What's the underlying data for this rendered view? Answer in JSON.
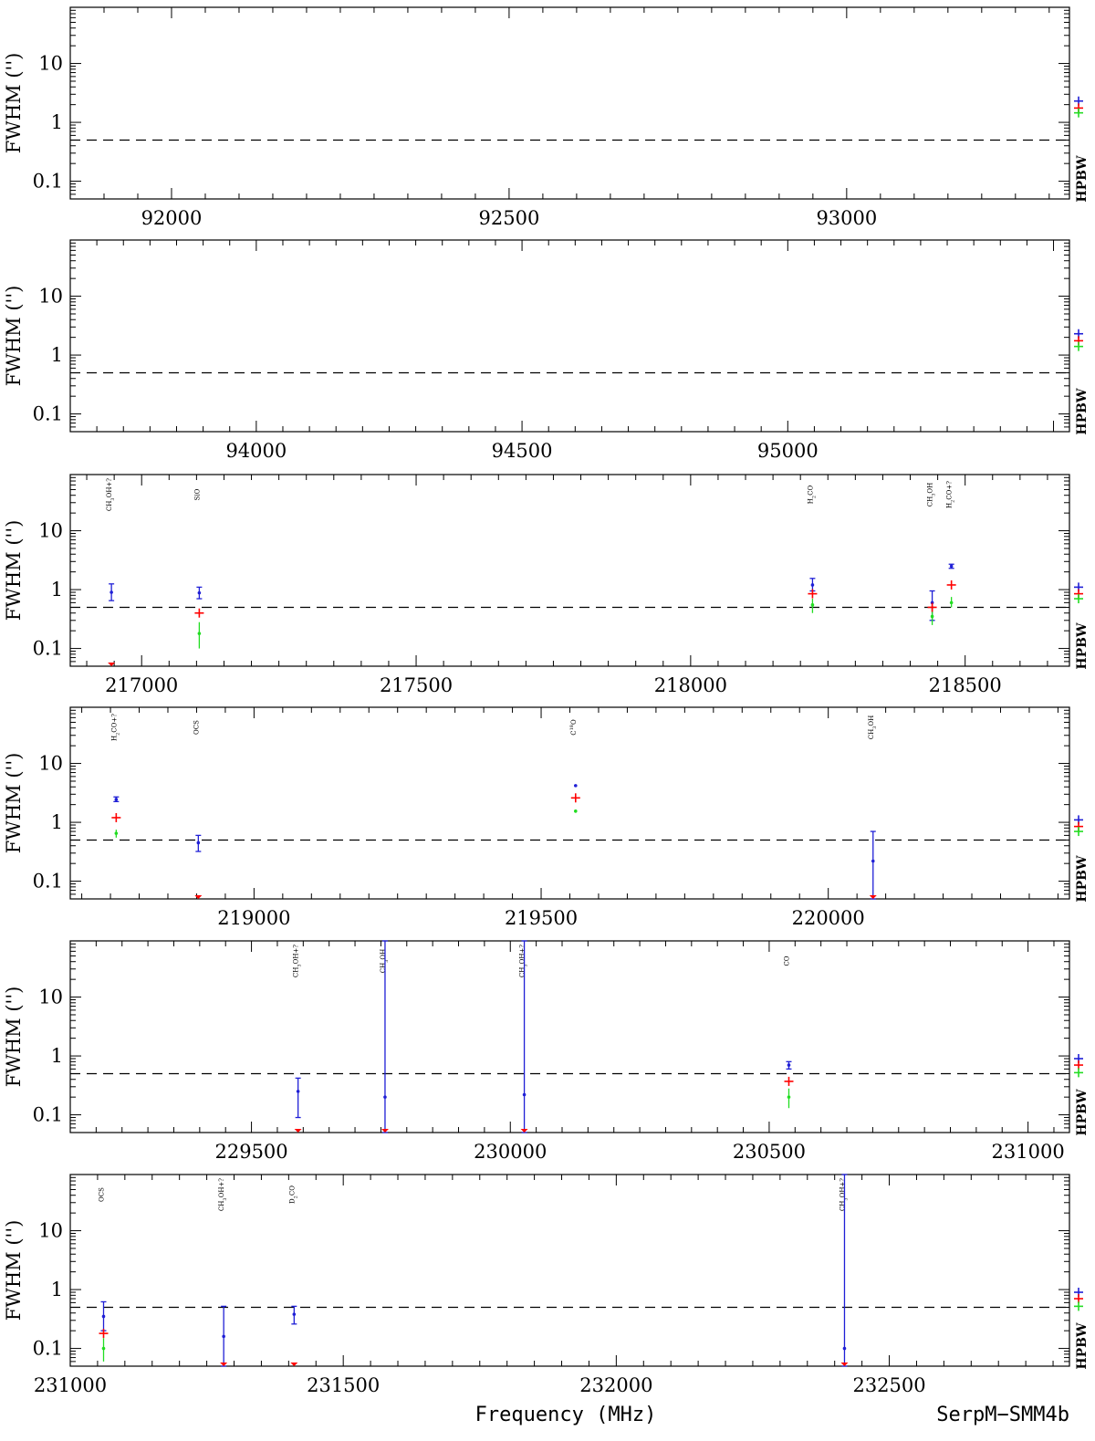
{
  "source_label": "SerpM−SMM4b",
  "xlabel": "Frequency (MHz)",
  "ylabel": "FWHM ('')",
  "hpbw_label": "HPBW",
  "colors": {
    "blue": "#1f1fd6",
    "red": "#ff0000",
    "green": "#22dd22",
    "axis": "#000000"
  },
  "chart_data": [
    {
      "type": "scatter",
      "title": "",
      "xlabel": "",
      "ylabel": "FWHM ('')",
      "xlim": [
        91850,
        93330
      ],
      "ylim": [
        0.05,
        90
      ],
      "yscale": "log",
      "xticks": [
        92000,
        92500,
        93000,
        93500
      ],
      "yticks": [
        0.1,
        1,
        10
      ],
      "ytick_labels": [
        "0.1",
        "1",
        "10"
      ],
      "reference_line_y": 0.5,
      "hpbw": {
        "blue": 2.3,
        "red": 1.75,
        "green": 1.45
      },
      "lines": []
    },
    {
      "type": "scatter",
      "title": "",
      "xlabel": "",
      "ylabel": "FWHM ('')",
      "xlim": [
        93650,
        95530
      ],
      "ylim": [
        0.05,
        90
      ],
      "yscale": "log",
      "xticks": [
        94000,
        94500,
        95000
      ],
      "yticks": [
        0.1,
        1,
        10
      ],
      "ytick_labels": [
        "0.1",
        "1",
        "10"
      ],
      "reference_line_y": 0.5,
      "hpbw": {
        "blue": 2.3,
        "red": 1.75,
        "green": 1.4
      },
      "lines": []
    },
    {
      "type": "scatter",
      "title": "",
      "xlabel": "",
      "ylabel": "FWHM ('')",
      "xlim": [
        216870,
        218690
      ],
      "ylim": [
        0.05,
        90
      ],
      "yscale": "log",
      "xticks": [
        217000,
        217500,
        218000,
        218500
      ],
      "yticks": [
        0.1,
        1,
        10
      ],
      "ytick_labels": [
        "0.1",
        "1",
        "10"
      ],
      "reference_line_y": 0.5,
      "hpbw": {
        "blue": 1.1,
        "red": 0.85,
        "green": 0.7
      },
      "lines": [
        {
          "freq": 216945,
          "label": "CH3OH+?",
          "blue": 0.9,
          "blue_err": [
            0.65,
            1.25
          ],
          "red": 0.05,
          "green": null,
          "green_err": null
        },
        {
          "freq": 217105,
          "label": "SiO",
          "blue": 0.88,
          "blue_err": [
            0.7,
            1.1
          ],
          "red": 0.4,
          "green": 0.18,
          "green_err": [
            0.1,
            0.28
          ]
        },
        {
          "freq": 218222,
          "label": "H2CO",
          "blue": 1.2,
          "blue_err": [
            0.95,
            1.55
          ],
          "red": 0.85,
          "green": 0.55,
          "green_err": [
            0.4,
            0.7
          ]
        },
        {
          "freq": 218440,
          "label": "CH3OH",
          "blue": 0.6,
          "blue_err": [
            0.3,
            0.95
          ],
          "red": 0.5,
          "green": 0.35,
          "green_err": [
            0.25,
            0.5
          ]
        },
        {
          "freq": 218475,
          "label": "H2CO+?",
          "blue": 2.5,
          "blue_err": [
            2.3,
            2.7
          ],
          "red": 1.2,
          "green": 0.6,
          "green_err": [
            0.5,
            0.75
          ]
        }
      ]
    },
    {
      "type": "scatter",
      "title": "",
      "xlabel": "",
      "ylabel": "FWHM ('')",
      "xlim": [
        218680,
        220420
      ],
      "ylim": [
        0.05,
        90
      ],
      "yscale": "log",
      "xticks": [
        219000,
        219500,
        220000
      ],
      "yticks": [
        0.1,
        1,
        10
      ],
      "ytick_labels": [
        "0.1",
        "1",
        "10"
      ],
      "reference_line_y": 0.5,
      "hpbw": {
        "blue": 1.1,
        "red": 0.85,
        "green": 0.7
      },
      "lines": [
        {
          "freq": 218760,
          "label": "H2CO+?",
          "blue": 2.45,
          "blue_err": [
            2.25,
            2.7
          ],
          "red": 1.2,
          "green": 0.65,
          "green_err": [
            0.55,
            0.75
          ]
        },
        {
          "freq": 218903,
          "label": "OCS",
          "blue": 0.45,
          "blue_err": [
            0.32,
            0.6
          ],
          "red": 0.05,
          "green": null,
          "green_err": null
        },
        {
          "freq": 219560,
          "label": "C18O",
          "blue": 4.2,
          "blue_err": null,
          "red": 2.6,
          "green": 1.55,
          "green_err": [
            1.45,
            1.65
          ]
        },
        {
          "freq": 220078,
          "label": "CH3OH",
          "blue": 0.22,
          "blue_err": [
            0.05,
            0.7
          ],
          "red": 0.05,
          "green": null,
          "green_err": null
        }
      ]
    },
    {
      "type": "scatter",
      "title": "",
      "xlabel": "",
      "ylabel": "FWHM ('')",
      "xlim": [
        229150,
        231080
      ],
      "ylim": [
        0.05,
        90
      ],
      "yscale": "log",
      "xticks": [
        229500,
        230000,
        230500,
        231000
      ],
      "yticks": [
        0.1,
        1,
        10
      ],
      "ytick_labels": [
        "0.1",
        "1",
        "10"
      ],
      "reference_line_y": 0.5,
      "hpbw": {
        "blue": 0.9,
        "red": 0.7,
        "green": 0.52
      },
      "lines": [
        {
          "freq": 229590,
          "label": "CH3OH+?",
          "blue": 0.25,
          "blue_err": [
            0.09,
            0.42
          ],
          "red": 0.05,
          "green": null,
          "green_err": null
        },
        {
          "freq": 229758,
          "label": "CH3OH",
          "blue": 0.2,
          "blue_err": [
            0.05,
            90
          ],
          "red": 0.05,
          "green": null,
          "green_err": null
        },
        {
          "freq": 230027,
          "label": "CH3OH+?",
          "blue": 0.22,
          "blue_err": [
            0.05,
            90
          ],
          "red": 0.05,
          "green": null,
          "green_err": null
        },
        {
          "freq": 230538,
          "label": "CO",
          "blue": 0.7,
          "blue_err": [
            0.6,
            0.8
          ],
          "red": 0.37,
          "green": 0.2,
          "green_err": [
            0.13,
            0.28
          ]
        }
      ]
    },
    {
      "type": "scatter",
      "title": "",
      "xlabel": "Frequency (MHz)",
      "ylabel": "FWHM ('')",
      "xlim": [
        231000,
        232830
      ],
      "ylim": [
        0.05,
        90
      ],
      "yscale": "log",
      "xticks": [
        231000,
        231500,
        232000,
        232500
      ],
      "yticks": [
        0.1,
        1,
        10
      ],
      "ytick_labels": [
        "0.1",
        "1",
        "10"
      ],
      "reference_line_y": 0.5,
      "hpbw": {
        "blue": 0.9,
        "red": 0.7,
        "green": 0.52
      },
      "lines": [
        {
          "freq": 231061,
          "label": "OCS",
          "blue": 0.35,
          "blue_err": [
            0.2,
            0.62
          ],
          "red": 0.18,
          "green": 0.1,
          "green_err": [
            0.06,
            0.15
          ]
        },
        {
          "freq": 231281,
          "label": "CH3OH+?",
          "blue": 0.16,
          "blue_err": [
            0.05,
            0.52
          ],
          "red": 0.05,
          "green": null,
          "green_err": null
        },
        {
          "freq": 231410,
          "label": "D2CO",
          "blue": 0.38,
          "blue_err": [
            0.26,
            0.52
          ],
          "red": 0.05,
          "green": null,
          "green_err": null
        },
        {
          "freq": 232418,
          "label": "CH3OH+?",
          "blue": 0.1,
          "blue_err": [
            0.05,
            90
          ],
          "red": 0.05,
          "green": null,
          "green_err": null
        }
      ]
    }
  ]
}
